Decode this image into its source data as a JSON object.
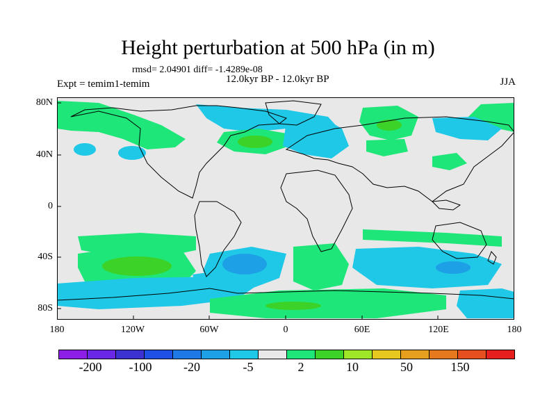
{
  "title": "Height perturbation at 500 hPa (in m)",
  "stats": "rmsd= 2.04901 diff= -1.4289e-08",
  "expt": "Expt = temim1-temim",
  "subtitle": "12.0kyr BP - 12.0kyr BP",
  "season": "JJA",
  "lat_labels": [
    "80N",
    "40N",
    "0",
    "40S",
    "80S"
  ],
  "lon_labels": [
    "180",
    "120W",
    "60W",
    "0",
    "60E",
    "120E",
    "180"
  ],
  "colorbar": {
    "colors": [
      "#8c1ee6",
      "#6a28e6",
      "#3c32d2",
      "#1e50e6",
      "#1e78e6",
      "#1ea0e6",
      "#1ec8e6",
      "#e8e8e8",
      "#1ee678",
      "#3cd228",
      "#a0e628",
      "#e6c81e",
      "#e6a01e",
      "#e6781e",
      "#e6501e",
      "#e61e1e"
    ],
    "labels": [
      "-200",
      "-100",
      "-20",
      "-5",
      "2",
      "10",
      "50",
      "150"
    ]
  },
  "map_colors": {
    "ocean_background": "#e8e8e8",
    "coast": "#000000"
  }
}
